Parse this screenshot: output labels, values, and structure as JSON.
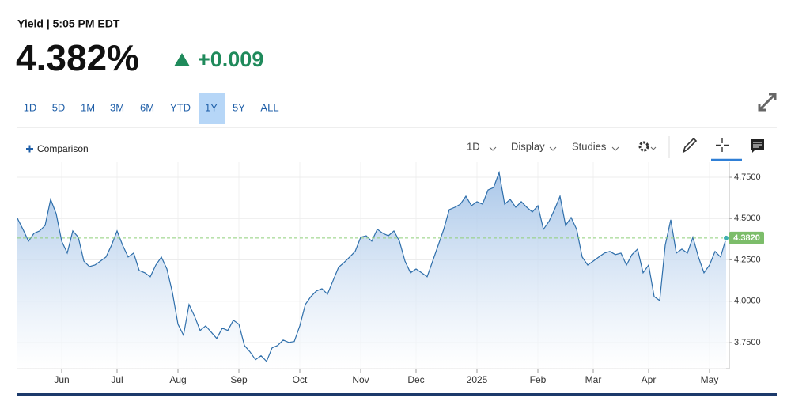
{
  "header": {
    "title": "Yield | 5:05 PM EDT",
    "price": "4.382%",
    "change": "+0.009"
  },
  "ranges": [
    "1D",
    "5D",
    "1M",
    "3M",
    "6M",
    "YTD",
    "1Y",
    "5Y",
    "ALL"
  ],
  "selected_range": "1Y",
  "toolbar": {
    "comparison": "Comparison",
    "interval": "1D",
    "display": "Display",
    "studies": "Studies"
  },
  "chart_data": {
    "type": "area",
    "categories": [
      null,
      null,
      null,
      null,
      null,
      null,
      null,
      null,
      "Jun",
      null,
      null,
      null,
      null,
      null,
      null,
      null,
      null,
      null,
      "Jul",
      null,
      null,
      null,
      null,
      null,
      null,
      null,
      null,
      null,
      null,
      "Aug",
      null,
      null,
      null,
      null,
      null,
      null,
      null,
      null,
      null,
      null,
      "Sep",
      null,
      null,
      null,
      null,
      null,
      null,
      null,
      null,
      null,
      null,
      "Oct",
      null,
      null,
      null,
      null,
      null,
      null,
      null,
      null,
      null,
      null,
      "Nov",
      null,
      null,
      null,
      null,
      null,
      null,
      null,
      null,
      null,
      "Dec",
      null,
      null,
      null,
      null,
      null,
      null,
      null,
      null,
      null,
      null,
      "2025",
      null,
      null,
      null,
      null,
      null,
      null,
      null,
      null,
      null,
      null,
      "Feb",
      null,
      null,
      null,
      null,
      null,
      null,
      null,
      null,
      null,
      "Mar",
      null,
      null,
      null,
      null,
      null,
      null,
      null,
      null,
      null,
      "Apr",
      null,
      null,
      null,
      null,
      null,
      null,
      null,
      null,
      null,
      null,
      "May",
      null,
      null,
      null
    ],
    "values": [
      4.501,
      4.435,
      4.363,
      4.411,
      4.425,
      4.458,
      4.616,
      4.53,
      4.363,
      4.291,
      4.425,
      4.387,
      4.243,
      4.21,
      4.219,
      4.243,
      4.267,
      4.339,
      4.425,
      4.339,
      4.267,
      4.291,
      4.186,
      4.172,
      4.148,
      4.219,
      4.267,
      4.195,
      4.052,
      3.861,
      3.794,
      3.98,
      3.909,
      3.823,
      3.851,
      3.813,
      3.775,
      3.837,
      3.823,
      3.885,
      3.861,
      3.732,
      3.694,
      3.646,
      3.67,
      3.636,
      3.718,
      3.732,
      3.765,
      3.751,
      3.756,
      3.851,
      3.98,
      4.028,
      4.062,
      4.076,
      4.043,
      4.124,
      4.205,
      4.234,
      4.267,
      4.301,
      4.387,
      4.396,
      4.363,
      4.435,
      4.411,
      4.396,
      4.425,
      4.363,
      4.243,
      4.172,
      4.195,
      4.172,
      4.148,
      4.243,
      4.339,
      4.435,
      4.554,
      4.568,
      4.587,
      4.635,
      4.578,
      4.602,
      4.587,
      4.673,
      4.688,
      4.779,
      4.587,
      4.616,
      4.568,
      4.602,
      4.568,
      4.54,
      4.578,
      4.435,
      4.482,
      4.554,
      4.635,
      4.458,
      4.506,
      4.435,
      4.267,
      4.219,
      4.243,
      4.267,
      4.291,
      4.301,
      4.282,
      4.291,
      4.219,
      4.282,
      4.315,
      4.172,
      4.219,
      4.028,
      4.004,
      4.339,
      4.492,
      4.291,
      4.315,
      4.291,
      4.387,
      4.267,
      4.172,
      4.219,
      4.301,
      4.267,
      4.382
    ],
    "last_value_label": "4.3820",
    "color": "#2f6fab",
    "ylim": [
      3.592,
      4.841
    ],
    "yticks": [
      {
        "value": 3.75,
        "label": "3.7500"
      },
      {
        "value": 4.0,
        "label": "4.0000"
      },
      {
        "value": 4.25,
        "label": "4.2500"
      },
      {
        "value": 4.5,
        "label": "4.5000"
      },
      {
        "value": 4.75,
        "label": "4.7500"
      }
    ],
    "grid": true
  }
}
